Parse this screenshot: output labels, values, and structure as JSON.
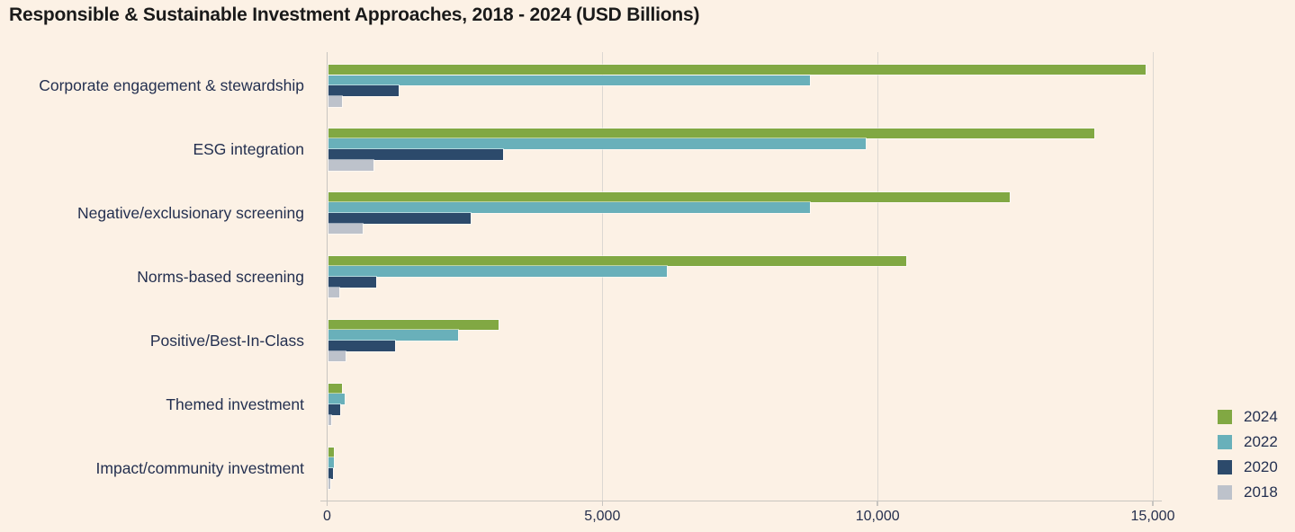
{
  "title": "Responsible & Sustainable Investment Approaches, 2018 - 2024 (USD Billions)",
  "colors": {
    "background": "#fcf1e5",
    "title_text": "#1a1a1a",
    "label_text": "#243050",
    "gridline": "#dcd8d2",
    "axis": "#c8c5c0",
    "series_2024": "#81a843",
    "series_2022": "#69b0ba",
    "series_2020": "#2c4a6b",
    "series_2018": "#bdc2cb"
  },
  "chart_data": {
    "type": "bar",
    "orientation": "horizontal",
    "title": "Responsible & Sustainable Investment Approaches, 2018 - 2024 (USD Billions)",
    "unit": "USD Billions",
    "categories": [
      "Corporate engagement & stewardship",
      "ESG integration",
      "Negative/exclusionary screening",
      "Norms-based screening",
      "Positive/Best-In-Class",
      "Themed investment",
      "Impact/community investment"
    ],
    "series": [
      {
        "name": "2024",
        "color": "#81a843",
        "values": [
          14850,
          13920,
          12390,
          10500,
          3100,
          260,
          110
        ]
      },
      {
        "name": "2022",
        "color": "#69b0ba",
        "values": [
          8750,
          9770,
          8750,
          6160,
          2360,
          300,
          100
        ]
      },
      {
        "name": "2020",
        "color": "#2c4a6b",
        "values": [
          1280,
          3180,
          2590,
          875,
          1220,
          220,
          85
        ]
      },
      {
        "name": "2018",
        "color": "#bdc2cb",
        "values": [
          250,
          830,
          630,
          200,
          320,
          50,
          35
        ]
      }
    ],
    "xlim": [
      0,
      15000
    ],
    "x_ticks": [
      0,
      5000,
      10000,
      15000
    ],
    "x_tick_labels": [
      "0",
      "5,000",
      "10,000",
      "15,000"
    ],
    "ylabel": "",
    "xlabel": "",
    "grid": "vertical-only",
    "legend_position": "right",
    "legend_entries": [
      "2024",
      "2022",
      "2020",
      "2018"
    ]
  }
}
